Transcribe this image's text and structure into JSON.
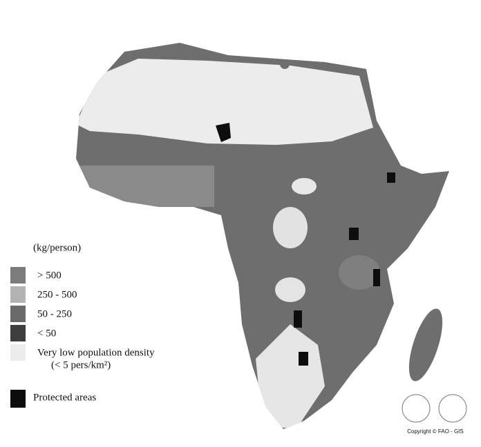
{
  "legend": {
    "title": "(kg/person)",
    "items": [
      {
        "label": "> 500",
        "color": "#7b7b7b"
      },
      {
        "label": "250 - 500",
        "color": "#b3b3b3"
      },
      {
        "label": "50 - 250",
        "color": "#6a6a6a"
      },
      {
        "label": "< 50",
        "color": "#3e3e3e"
      },
      {
        "label": "Very low population density",
        "sublabel": "(< 5 pers/km²)",
        "color": "#ececec"
      }
    ],
    "protected": {
      "label": "Protected areas",
      "color": "#0d0d0d"
    }
  },
  "credit": "Copyright © FAO - GIS"
}
